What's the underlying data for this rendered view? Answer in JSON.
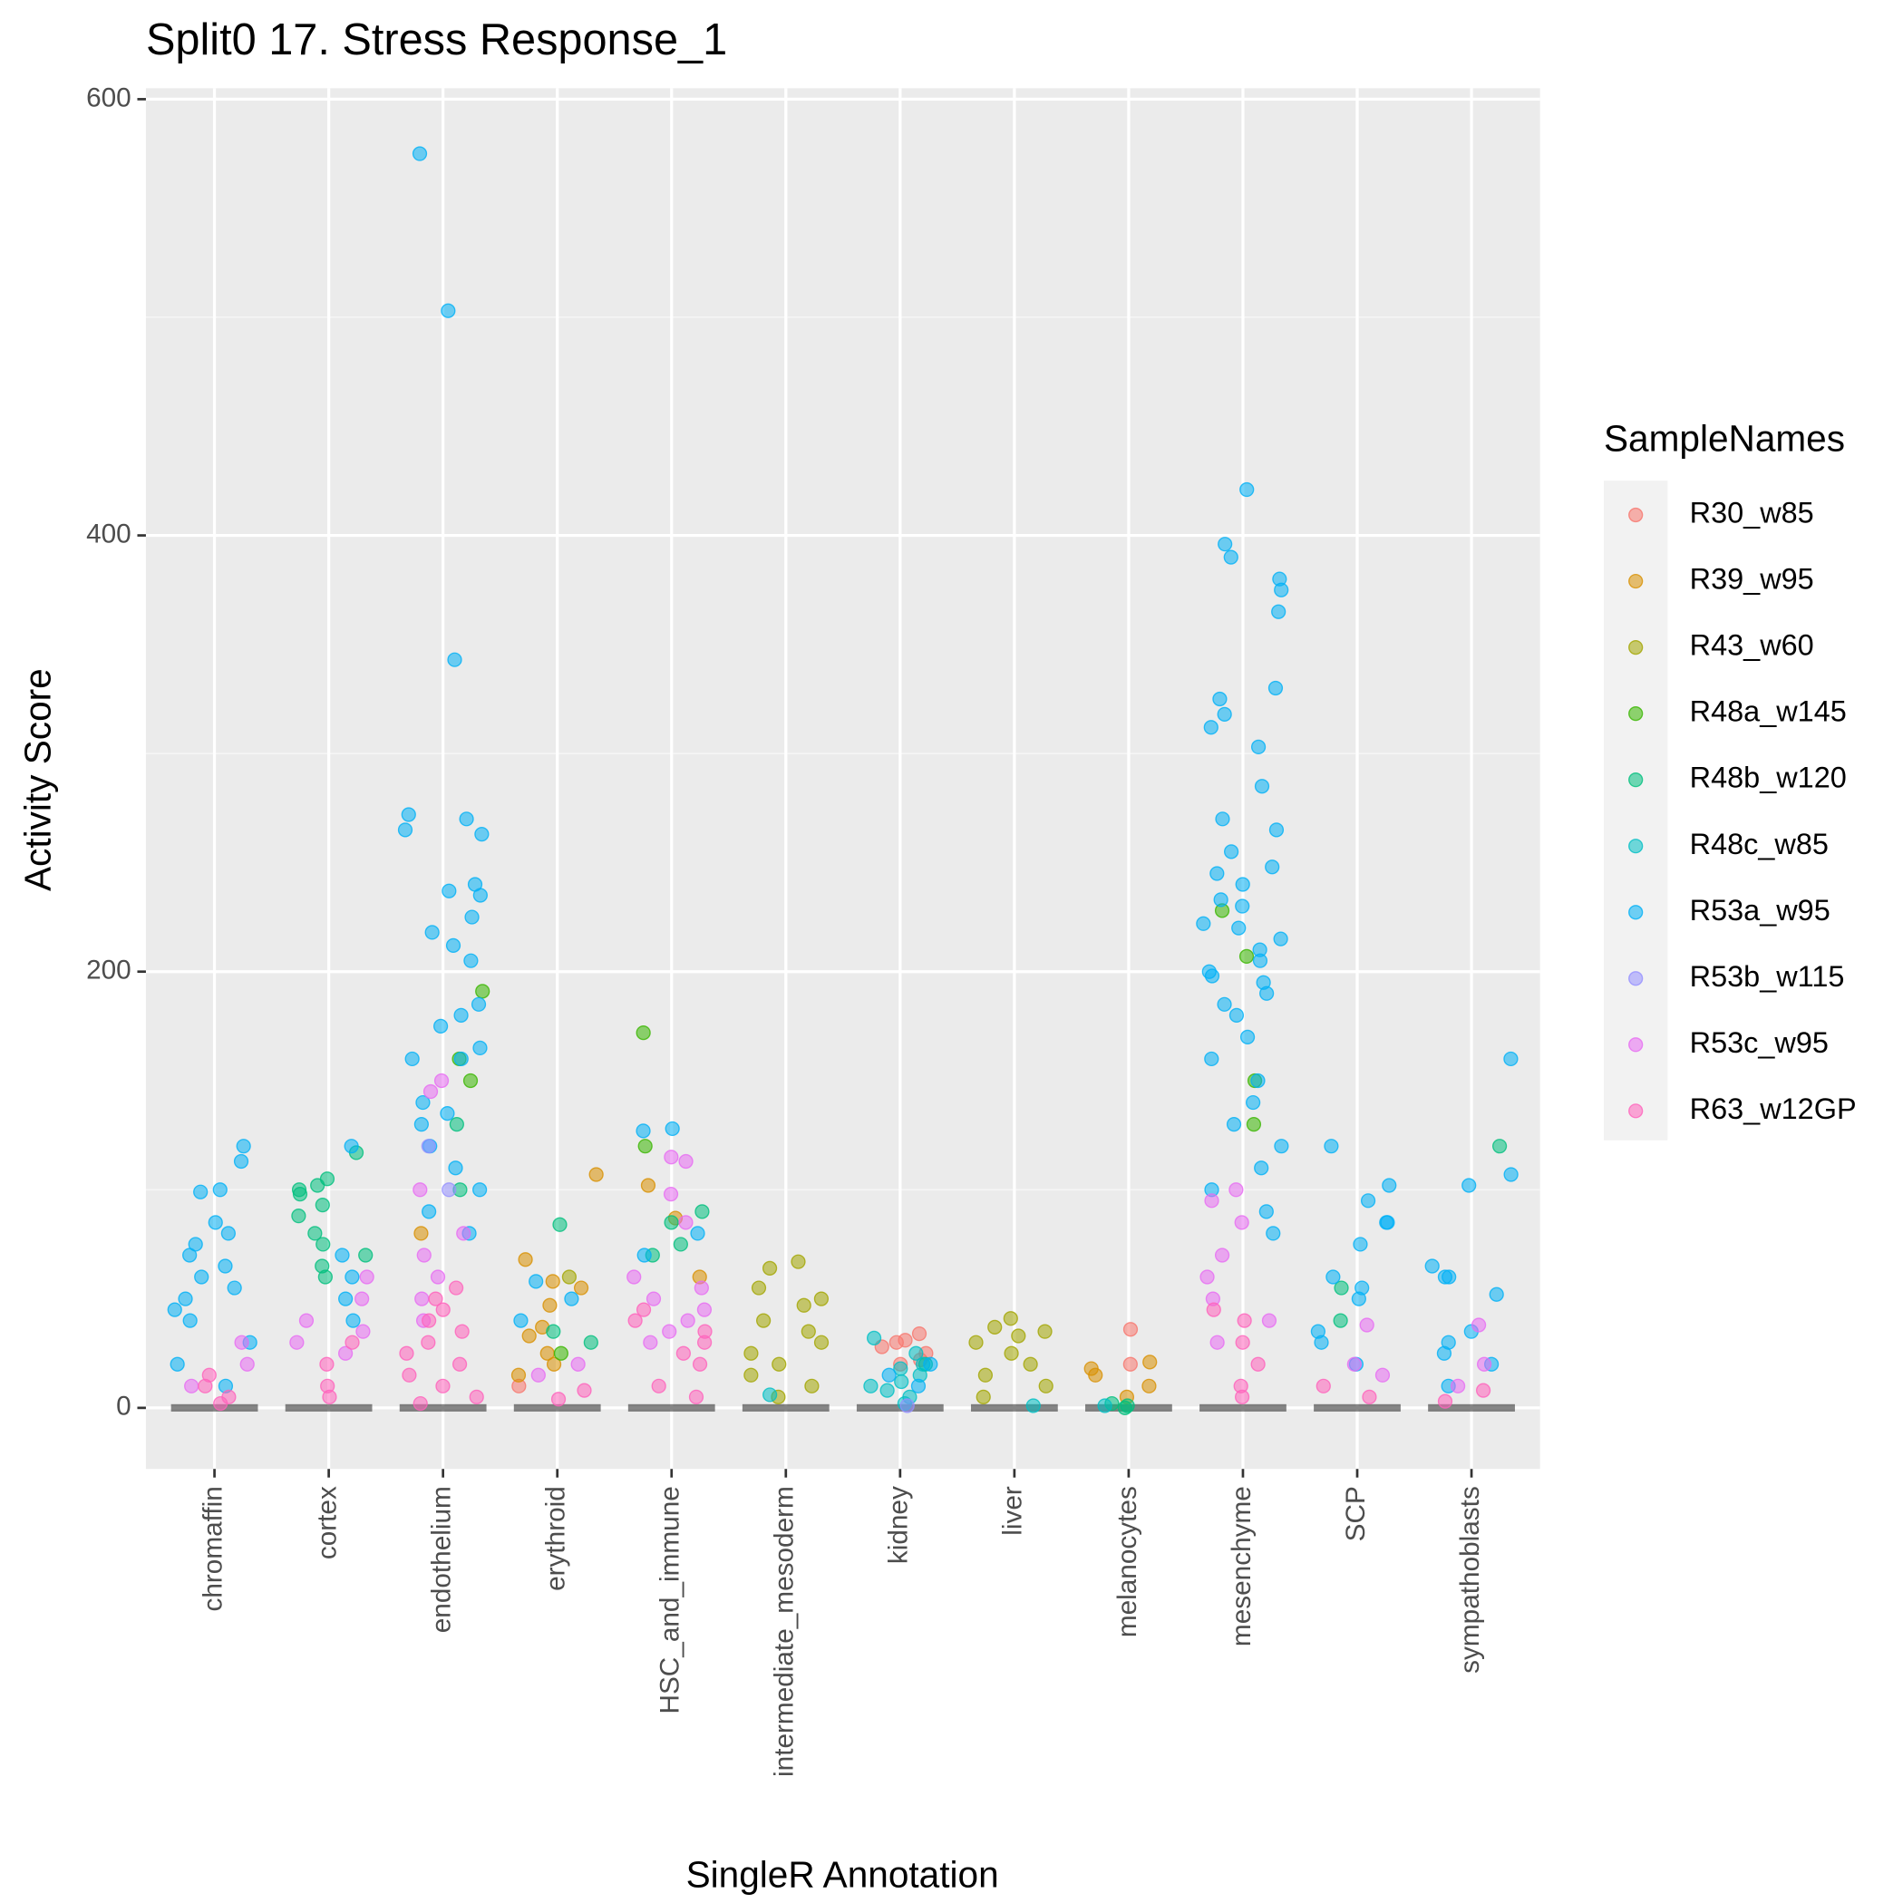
{
  "chart_data": {
    "type": "strip",
    "title": "Split0 17. Stress Response_1",
    "xlabel": "SingleR Annotation",
    "ylabel": "Activity Score",
    "legend_title": "SampleNames",
    "legend": "right",
    "grid": true,
    "categories": [
      "chromaffin",
      "cortex",
      "endothelium",
      "erythroid",
      "HSC_and_immune",
      "intermediate_mesoderm",
      "kidney",
      "liver",
      "melanocytes",
      "mesenchyme",
      "SCP",
      "sympathoblasts"
    ],
    "ylim": [
      -28,
      605
    ],
    "yticks": [
      0,
      200,
      400,
      600
    ],
    "minor_yticks": [
      100,
      300,
      500
    ],
    "series": [
      {
        "name": "R30_w85",
        "color": "#F8766D",
        "x": [
          "kidney",
          "kidney",
          "kidney",
          "kidney",
          "kidney",
          "kidney",
          "kidney",
          "melanocytes",
          "melanocytes",
          "erythroid"
        ],
        "values": [
          34,
          31,
          30,
          28,
          25,
          22,
          20,
          36,
          20,
          10
        ]
      },
      {
        "name": "R39_w95",
        "color": "#D89000",
        "x": [
          "erythroid",
          "erythroid",
          "erythroid",
          "erythroid",
          "erythroid",
          "erythroid",
          "erythroid",
          "erythroid",
          "erythroid",
          "erythroid",
          "HSC_and_immune",
          "HSC_and_immune",
          "HSC_and_immune",
          "melanocytes",
          "melanocytes",
          "melanocytes",
          "melanocytes",
          "melanocytes",
          "endothelium"
        ],
        "values": [
          107,
          68,
          58,
          55,
          47,
          37,
          33,
          25,
          20,
          15,
          102,
          87,
          60,
          21,
          18,
          15,
          10,
          5,
          80
        ]
      },
      {
        "name": "R43_w60",
        "color": "#A3A500",
        "x": [
          "intermediate_mesoderm",
          "intermediate_mesoderm",
          "intermediate_mesoderm",
          "intermediate_mesoderm",
          "intermediate_mesoderm",
          "intermediate_mesoderm",
          "intermediate_mesoderm",
          "intermediate_mesoderm",
          "intermediate_mesoderm",
          "intermediate_mesoderm",
          "intermediate_mesoderm",
          "intermediate_mesoderm",
          "intermediate_mesoderm",
          "liver",
          "liver",
          "liver",
          "liver",
          "liver",
          "liver",
          "liver",
          "liver",
          "liver",
          "liver",
          "erythroid"
        ],
        "values": [
          67,
          64,
          55,
          50,
          47,
          40,
          35,
          30,
          25,
          20,
          15,
          10,
          5,
          41,
          37,
          35,
          33,
          30,
          25,
          20,
          15,
          10,
          5,
          60
        ]
      },
      {
        "name": "R48a_w145",
        "color": "#39B600",
        "x": [
          "HSC_and_immune",
          "HSC_and_immune",
          "endothelium",
          "endothelium",
          "endothelium",
          "mesenchyme",
          "mesenchyme",
          "mesenchyme",
          "mesenchyme",
          "erythroid"
        ],
        "values": [
          172,
          120,
          191,
          160,
          150,
          228,
          207,
          150,
          130,
          25
        ]
      },
      {
        "name": "R48b_w120",
        "color": "#00BF7D",
        "x": [
          "cortex",
          "cortex",
          "cortex",
          "cortex",
          "cortex",
          "cortex",
          "cortex",
          "cortex",
          "cortex",
          "cortex",
          "cortex",
          "cortex",
          "erythroid",
          "erythroid",
          "erythroid",
          "HSC_and_immune",
          "HSC_and_immune",
          "HSC_and_immune",
          "HSC_and_immune",
          "SCP",
          "SCP",
          "sympathoblasts",
          "endothelium",
          "endothelium",
          "melanocytes",
          "melanocytes",
          "melanocytes",
          "kidney"
        ],
        "values": [
          117,
          105,
          102,
          100,
          98,
          93,
          88,
          80,
          75,
          70,
          65,
          60,
          84,
          35,
          30,
          90,
          85,
          75,
          70,
          55,
          40,
          120,
          130,
          100,
          2,
          1,
          0,
          20
        ]
      },
      {
        "name": "R48c_w85",
        "color": "#00BFC4",
        "x": [
          "kidney",
          "kidney",
          "kidney",
          "kidney",
          "kidney",
          "kidney",
          "kidney",
          "kidney",
          "kidney",
          "kidney",
          "intermediate_mesoderm",
          "liver",
          "melanocytes"
        ],
        "values": [
          32,
          25,
          20,
          18,
          15,
          12,
          10,
          8,
          5,
          2,
          6,
          1,
          1
        ]
      },
      {
        "name": "R53a_w95",
        "color": "#00B0F6",
        "x": [
          "chromaffin",
          "chromaffin",
          "chromaffin",
          "chromaffin",
          "chromaffin",
          "chromaffin",
          "chromaffin",
          "chromaffin",
          "chromaffin",
          "chromaffin",
          "chromaffin",
          "chromaffin",
          "chromaffin",
          "chromaffin",
          "chromaffin",
          "chromaffin",
          "chromaffin",
          "cortex",
          "cortex",
          "cortex",
          "cortex",
          "cortex",
          "endothelium",
          "endothelium",
          "endothelium",
          "endothelium",
          "endothelium",
          "endothelium",
          "endothelium",
          "endothelium",
          "endothelium",
          "endothelium",
          "endothelium",
          "endothelium",
          "endothelium",
          "endothelium",
          "endothelium",
          "endothelium",
          "endothelium",
          "endothelium",
          "endothelium",
          "endothelium",
          "endothelium",
          "endothelium",
          "endothelium",
          "endothelium",
          "endothelium",
          "endothelium",
          "endothelium",
          "endothelium",
          "erythroid",
          "erythroid",
          "erythroid",
          "HSC_and_immune",
          "HSC_and_immune",
          "HSC_and_immune",
          "HSC_and_immune",
          "kidney",
          "kidney",
          "kidney",
          "mesenchyme",
          "mesenchyme",
          "mesenchyme",
          "mesenchyme",
          "mesenchyme",
          "mesenchyme",
          "mesenchyme",
          "mesenchyme",
          "mesenchyme",
          "mesenchyme",
          "mesenchyme",
          "mesenchyme",
          "mesenchyme",
          "mesenchyme",
          "mesenchyme",
          "mesenchyme",
          "mesenchyme",
          "mesenchyme",
          "mesenchyme",
          "mesenchyme",
          "mesenchyme",
          "mesenchyme",
          "mesenchyme",
          "mesenchyme",
          "mesenchyme",
          "mesenchyme",
          "mesenchyme",
          "mesenchyme",
          "mesenchyme",
          "mesenchyme",
          "mesenchyme",
          "mesenchyme",
          "mesenchyme",
          "mesenchyme",
          "mesenchyme",
          "mesenchyme",
          "mesenchyme",
          "mesenchyme",
          "mesenchyme",
          "mesenchyme",
          "mesenchyme",
          "SCP",
          "SCP",
          "SCP",
          "SCP",
          "SCP",
          "SCP",
          "SCP",
          "SCP",
          "SCP",
          "SCP",
          "SCP",
          "SCP",
          "sympathoblasts",
          "sympathoblasts",
          "sympathoblasts",
          "sympathoblasts",
          "sympathoblasts",
          "sympathoblasts",
          "sympathoblasts",
          "sympathoblasts",
          "sympathoblasts",
          "sympathoblasts",
          "sympathoblasts",
          "sympathoblasts"
        ],
        "values": [
          120,
          113,
          100,
          99,
          85,
          80,
          75,
          70,
          65,
          60,
          55,
          50,
          45,
          40,
          30,
          20,
          10,
          120,
          70,
          60,
          50,
          40,
          575,
          503,
          343,
          270,
          272,
          265,
          263,
          240,
          237,
          235,
          225,
          218,
          212,
          205,
          185,
          180,
          175,
          165,
          160,
          160,
          140,
          135,
          130,
          120,
          110,
          100,
          90,
          80,
          58,
          50,
          40,
          128,
          127,
          80,
          70,
          20,
          15,
          10,
          421,
          396,
          390,
          380,
          375,
          365,
          330,
          325,
          318,
          312,
          303,
          285,
          270,
          265,
          255,
          248,
          245,
          240,
          233,
          230,
          222,
          220,
          215,
          210,
          205,
          200,
          198,
          195,
          190,
          185,
          180,
          170,
          160,
          150,
          140,
          130,
          120,
          110,
          100,
          90,
          80,
          120,
          102,
          95,
          85,
          85,
          75,
          60,
          55,
          50,
          35,
          30,
          20,
          160,
          107,
          102,
          65,
          60,
          60,
          52,
          35,
          30,
          25,
          20,
          10
        ]
      },
      {
        "name": "R53b_w115",
        "color": "#9590FF",
        "x": [
          "endothelium",
          "endothelium",
          "kidney"
        ],
        "values": [
          120,
          100,
          1
        ]
      },
      {
        "name": "R53c_w95",
        "color": "#E76BF3",
        "x": [
          "endothelium",
          "endothelium",
          "endothelium",
          "endothelium",
          "endothelium",
          "endothelium",
          "endothelium",
          "endothelium",
          "HSC_and_immune",
          "HSC_and_immune",
          "HSC_and_immune",
          "HSC_and_immune",
          "HSC_and_immune",
          "HSC_and_immune",
          "HSC_and_immune",
          "HSC_and_immune",
          "HSC_and_immune",
          "HSC_and_immune",
          "HSC_and_immune",
          "mesenchyme",
          "mesenchyme",
          "mesenchyme",
          "mesenchyme",
          "mesenchyme",
          "mesenchyme",
          "mesenchyme",
          "mesenchyme",
          "cortex",
          "cortex",
          "cortex",
          "cortex",
          "cortex",
          "cortex",
          "chromaffin",
          "chromaffin",
          "chromaffin",
          "erythroid",
          "erythroid",
          "SCP",
          "SCP",
          "SCP",
          "sympathoblasts",
          "sympathoblasts",
          "sympathoblasts"
        ],
        "values": [
          150,
          145,
          100,
          80,
          70,
          60,
          50,
          40,
          115,
          113,
          98,
          85,
          60,
          55,
          50,
          45,
          40,
          35,
          30,
          100,
          95,
          85,
          70,
          60,
          50,
          40,
          30,
          60,
          50,
          40,
          35,
          30,
          25,
          30,
          20,
          10,
          20,
          15,
          38,
          20,
          15,
          38,
          20,
          10
        ]
      },
      {
        "name": "R63_w12GP",
        "color": "#FF62BC",
        "x": [
          "endothelium",
          "endothelium",
          "endothelium",
          "endothelium",
          "endothelium",
          "endothelium",
          "endothelium",
          "endothelium",
          "endothelium",
          "endothelium",
          "endothelium",
          "endothelium",
          "HSC_and_immune",
          "HSC_and_immune",
          "HSC_and_immune",
          "HSC_and_immune",
          "HSC_and_immune",
          "HSC_and_immune",
          "HSC_and_immune",
          "HSC_and_immune",
          "mesenchyme",
          "mesenchyme",
          "mesenchyme",
          "mesenchyme",
          "mesenchyme",
          "mesenchyme",
          "cortex",
          "cortex",
          "cortex",
          "cortex",
          "chromaffin",
          "chromaffin",
          "chromaffin",
          "chromaffin",
          "erythroid",
          "erythroid",
          "SCP",
          "SCP",
          "sympathoblasts",
          "sympathoblasts"
        ],
        "values": [
          55,
          50,
          45,
          40,
          35,
          30,
          25,
          20,
          15,
          10,
          5,
          2,
          45,
          40,
          35,
          30,
          25,
          20,
          10,
          5,
          45,
          40,
          30,
          20,
          10,
          5,
          30,
          20,
          10,
          5,
          15,
          10,
          5,
          2,
          8,
          4,
          10,
          5,
          8,
          3
        ]
      }
    ]
  }
}
